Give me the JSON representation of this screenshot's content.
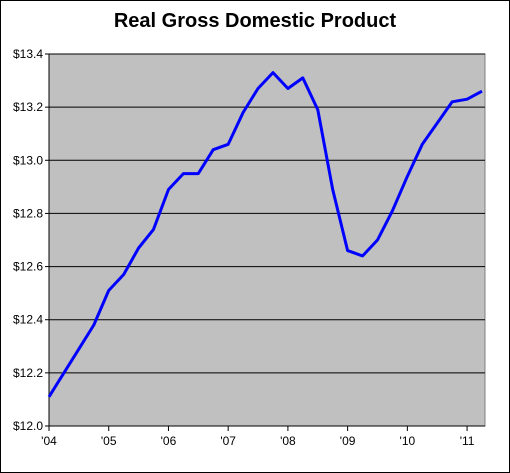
{
  "chart_data": {
    "type": "line",
    "title": "Real Gross Domestic Product",
    "xlabel": "",
    "ylabel": "",
    "x_tick_labels": [
      "'04",
      "'05",
      "'06",
      "'07",
      "'08",
      "'09",
      "'10",
      "'11"
    ],
    "y_tick_labels": [
      "$12.0",
      "$12.2",
      "$12.4",
      "$12.6",
      "$12.8",
      "$13.0",
      "$13.2",
      "$13.4"
    ],
    "ylim": [
      12.0,
      13.4
    ],
    "xlim": [
      2004.0,
      2011.3
    ],
    "grid": true,
    "legend": "none",
    "series": [
      {
        "x": [
          2004.0,
          2004.25,
          2004.5,
          2004.75,
          2005.0,
          2005.25,
          2005.5,
          2005.75,
          2006.0,
          2006.25,
          2006.5,
          2006.75,
          2007.0,
          2007.25,
          2007.5,
          2007.75,
          2008.0,
          2008.25,
          2008.5,
          2008.75,
          2009.0,
          2009.25,
          2009.5,
          2009.75,
          2010.0,
          2010.25,
          2010.5,
          2010.75,
          2011.0,
          2011.25
        ],
        "values": [
          12.11,
          12.2,
          12.29,
          12.38,
          12.51,
          12.57,
          12.67,
          12.74,
          12.89,
          12.95,
          12.95,
          13.04,
          13.06,
          13.18,
          13.27,
          13.33,
          13.27,
          13.31,
          13.19,
          12.89,
          12.66,
          12.64,
          12.7,
          12.81,
          12.94,
          13.06,
          13.14,
          13.22,
          13.23,
          13.26
        ]
      }
    ],
    "colors": {
      "plot_background": "#c0c0c0",
      "line": "#0000ff",
      "grid": "#000000"
    }
  }
}
